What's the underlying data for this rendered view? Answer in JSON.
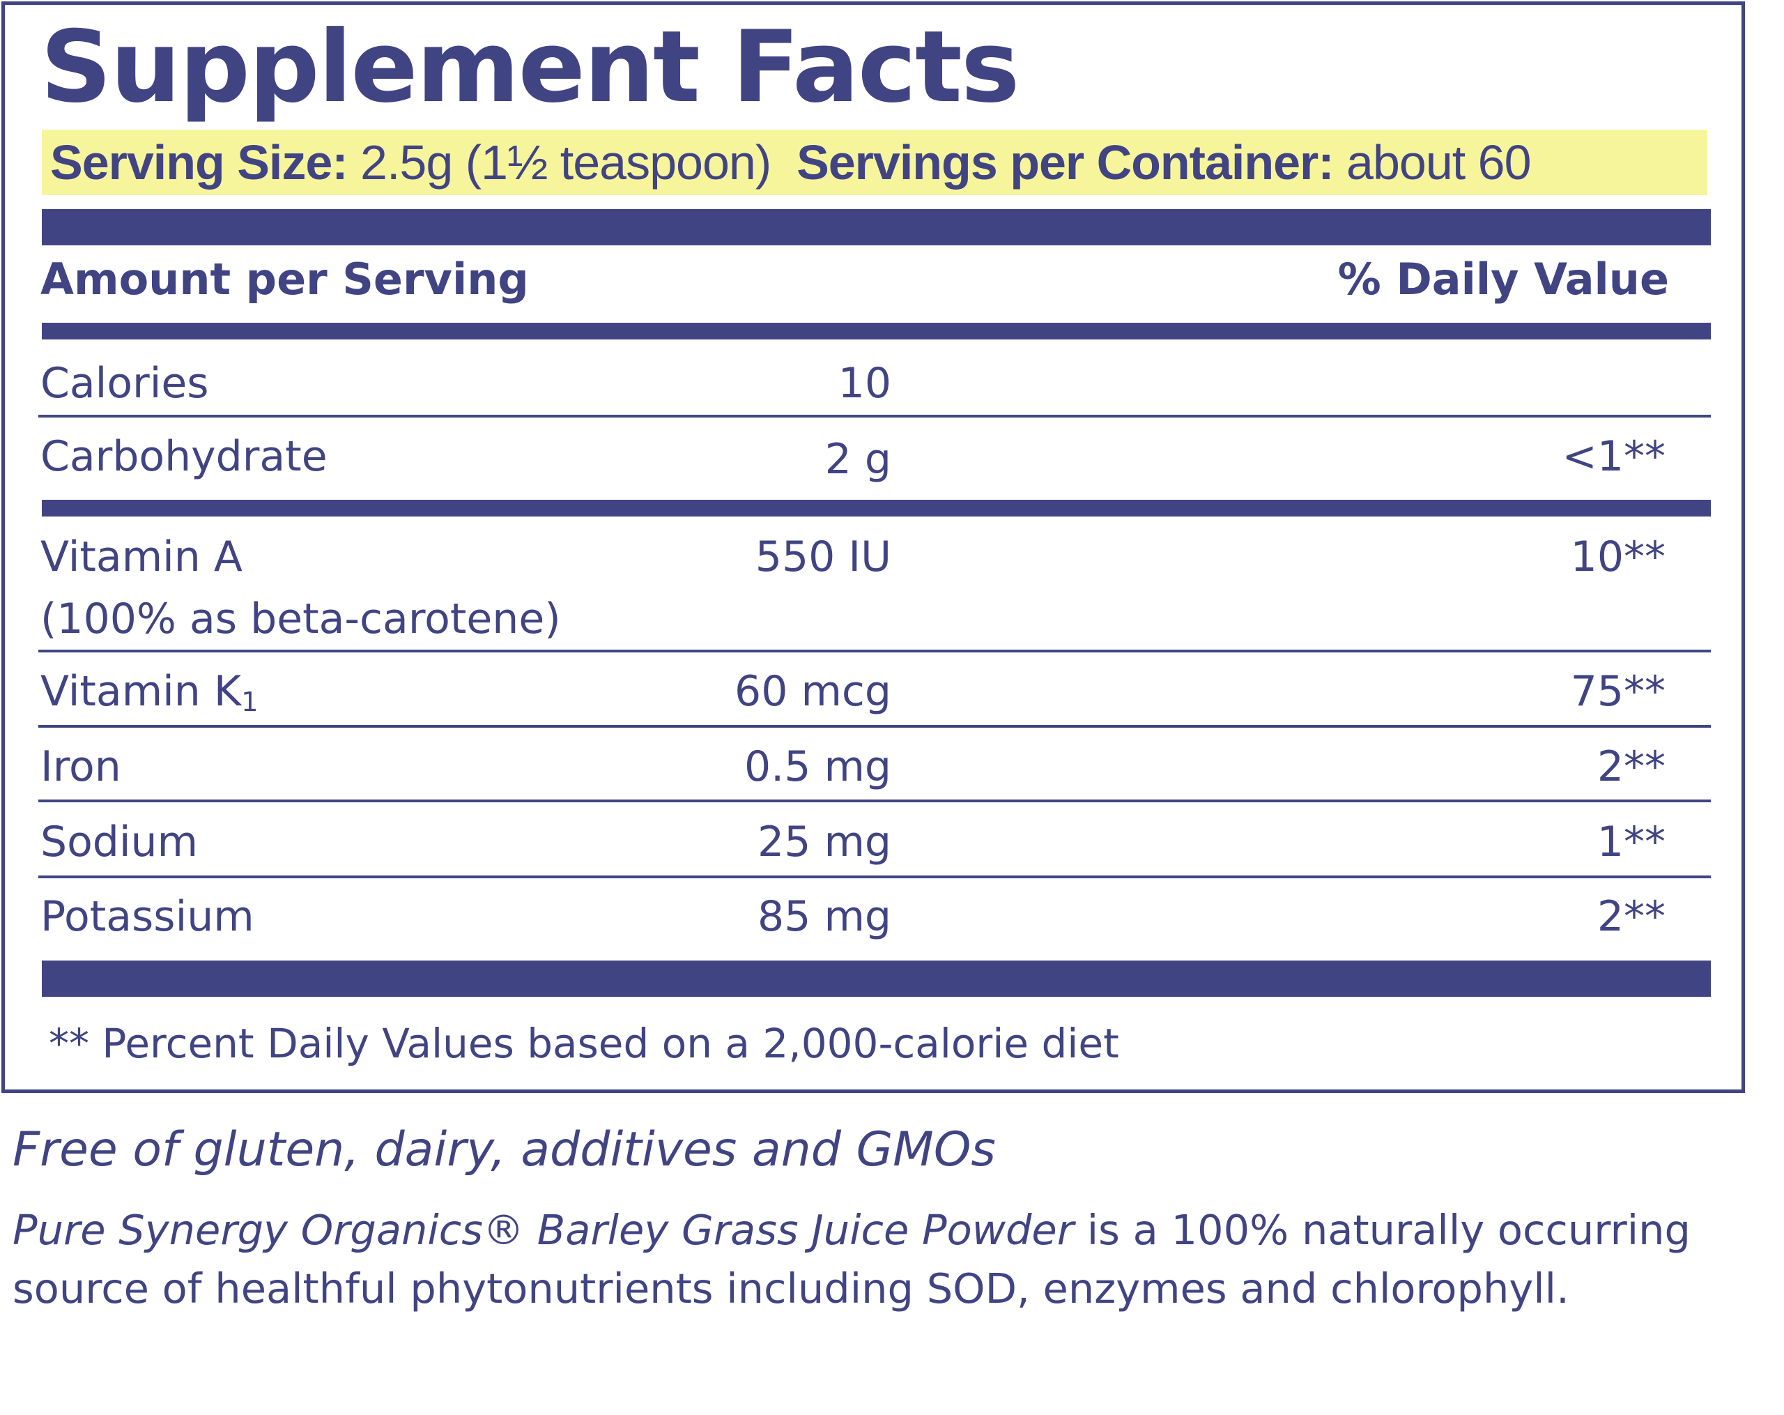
{
  "panel": {
    "title": "Supplement Facts",
    "serving": {
      "size_label": "Serving Size:",
      "size_value": "2.5g (1½ teaspoon)",
      "servings_label": "Servings per Container:",
      "servings_value": "about 60"
    },
    "header": {
      "amount": "Amount per Serving",
      "daily_value": "% Daily Value"
    },
    "rows": [
      {
        "name": "Calories",
        "amount": "10",
        "dv": ""
      },
      {
        "name": "Carbohydrate",
        "amount": "2 g",
        "dv": "<1**"
      },
      {
        "name": "Vitamin A",
        "name_line2": "(100% as beta-carotene)",
        "amount": "550 IU",
        "dv": "10**"
      },
      {
        "name": "Vitamin K",
        "subscript": "1",
        "amount": "60 mcg",
        "dv": "75**"
      },
      {
        "name": "Iron",
        "amount": "0.5 mg",
        "dv": "2**"
      },
      {
        "name": "Sodium",
        "amount": "25 mg",
        "dv": "1**"
      },
      {
        "name": "Potassium",
        "amount": "85 mg",
        "dv": "2**"
      }
    ],
    "footnote": "**  Percent Daily Values based on a 2,000-calorie diet"
  },
  "free_of": "Free of gluten, dairy, additives and GMOs",
  "description": {
    "product": "Pure Synergy Organics® Barley Grass Juice Powder",
    "text": " is a 100% naturally occurring source of healthful phytonutrients including SOD, enzymes and chlorophyll."
  },
  "colors": {
    "ink": "#414483",
    "highlight": "#f7f59c"
  }
}
